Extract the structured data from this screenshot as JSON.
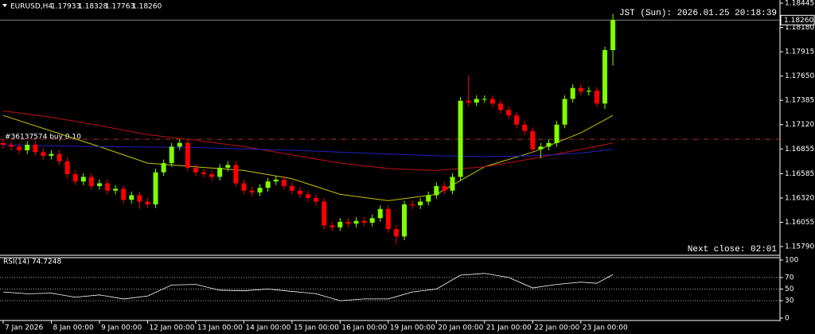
{
  "header": {
    "symbol": "EURUSD,H4",
    "ohlc_labels": [
      "1.17933",
      "1.18328",
      "1.17763",
      "1.18260"
    ],
    "clock": "JST (Sun): 2026.01.25 20:18:39",
    "next_close": "Next close: 02:01",
    "order_label": "#36137574 buy 0.10"
  },
  "chart_data": [
    {
      "type": "candlestick",
      "categories": [
        "7 Jan 2026",
        null,
        null,
        null,
        null,
        null,
        "8 Jan 00:00",
        null,
        null,
        null,
        null,
        null,
        "9 Jan 00:00",
        null,
        null,
        null,
        null,
        null,
        "12 Jan 00:00",
        null,
        null,
        null,
        null,
        null,
        "13 Jan 00:00",
        null,
        null,
        null,
        null,
        null,
        "14 Jan 00:00",
        null,
        null,
        null,
        null,
        null,
        "15 Jan 00:00",
        null,
        null,
        null,
        null,
        null,
        "16 Jan 00:00",
        null,
        null,
        null,
        null,
        null,
        "19 Jan 00:00",
        null,
        null,
        null,
        null,
        null,
        "20 Jan 00:00",
        null,
        null,
        null,
        null,
        null,
        "21 Jan 00:00",
        null,
        null,
        null,
        null,
        null,
        "22 Jan 00:00",
        null,
        null,
        null,
        null,
        null,
        "23 Jan 00:00",
        null,
        null,
        null,
        null
      ],
      "open": [
        1.1692,
        1.169,
        1.1688,
        1.1684,
        1.169,
        1.1682,
        1.1678,
        1.168,
        1.1672,
        1.1658,
        1.165,
        1.1655,
        1.1645,
        1.1648,
        1.164,
        1.1642,
        1.163,
        1.1635,
        1.1628,
        1.1625,
        1.166,
        1.167,
        1.1688,
        1.1692,
        1.1665,
        1.166,
        1.1658,
        1.1655,
        1.1665,
        1.1668,
        1.1648,
        1.164,
        1.1638,
        1.1643,
        1.165,
        1.1652,
        1.1645,
        1.164,
        1.1636,
        1.1632,
        1.1628,
        1.1602,
        1.16,
        1.1606,
        1.1604,
        1.1607,
        1.1605,
        1.161,
        1.162,
        1.1598,
        1.159,
        1.1625,
        1.1624,
        1.1628,
        1.1635,
        1.1645,
        1.164,
        1.1655,
        1.1738,
        1.1736,
        1.174,
        1.174,
        1.1735,
        1.1728,
        1.1722,
        1.1712,
        1.1705,
        1.1685,
        1.1688,
        1.1692,
        1.1712,
        1.174,
        1.1752,
        1.1748,
        1.1749,
        1.1735,
        1.17933
      ],
      "high": [
        1.1696,
        1.1694,
        1.1692,
        1.1694,
        1.1694,
        1.1686,
        1.1684,
        1.1684,
        1.1676,
        1.1662,
        1.1659,
        1.1659,
        1.1652,
        1.1652,
        1.1646,
        1.1646,
        1.1639,
        1.1639,
        1.1632,
        1.1664,
        1.1674,
        1.1692,
        1.1696,
        1.1696,
        1.1669,
        1.1664,
        1.1662,
        1.1669,
        1.1672,
        1.1672,
        1.1652,
        1.1644,
        1.1647,
        1.1654,
        1.1656,
        1.1656,
        1.1649,
        1.1644,
        1.164,
        1.1636,
        1.1632,
        1.1606,
        1.161,
        1.161,
        1.1611,
        1.1611,
        1.1614,
        1.1624,
        1.1624,
        1.1602,
        1.1629,
        1.1629,
        1.1632,
        1.1639,
        1.1649,
        1.1649,
        1.1659,
        1.1742,
        1.1766,
        1.1744,
        1.1744,
        1.1744,
        1.1739,
        1.1732,
        1.1726,
        1.1716,
        1.1709,
        1.1692,
        1.1696,
        1.1716,
        1.1744,
        1.1756,
        1.1756,
        1.1753,
        1.1753,
        1.1797,
        1.18328
      ],
      "low": [
        1.1686,
        1.1684,
        1.168,
        1.168,
        1.1678,
        1.1674,
        1.1674,
        1.1668,
        1.1654,
        1.1646,
        1.1646,
        1.1641,
        1.1641,
        1.1636,
        1.1636,
        1.1626,
        1.1626,
        1.162,
        1.1621,
        1.1621,
        1.1656,
        1.1666,
        1.1684,
        1.1661,
        1.1656,
        1.1654,
        1.1651,
        1.1651,
        1.1661,
        1.1644,
        1.1636,
        1.1634,
        1.1634,
        1.1639,
        1.1646,
        1.1641,
        1.1636,
        1.1632,
        1.1628,
        1.1624,
        1.1598,
        1.1596,
        1.1596,
        1.16,
        1.16,
        1.1601,
        1.1601,
        1.1606,
        1.1594,
        1.1582,
        1.1586,
        1.162,
        1.162,
        1.1624,
        1.1631,
        1.1636,
        1.1636,
        1.1651,
        1.1732,
        1.1732,
        1.1736,
        1.1731,
        1.1724,
        1.1718,
        1.1708,
        1.1701,
        1.1681,
        1.1675,
        1.1684,
        1.1688,
        1.1708,
        1.1736,
        1.1744,
        1.1744,
        1.1731,
        1.1729,
        1.17763
      ],
      "close": [
        1.169,
        1.1688,
        1.1684,
        1.169,
        1.1682,
        1.1678,
        1.168,
        1.1672,
        1.1658,
        1.165,
        1.1655,
        1.1645,
        1.1648,
        1.164,
        1.1642,
        1.163,
        1.1635,
        1.1628,
        1.1625,
        1.166,
        1.167,
        1.1688,
        1.1692,
        1.1665,
        1.166,
        1.1658,
        1.1655,
        1.1665,
        1.1668,
        1.1648,
        1.164,
        1.1638,
        1.1643,
        1.165,
        1.1652,
        1.1645,
        1.164,
        1.1636,
        1.1632,
        1.1628,
        1.1602,
        1.16,
        1.1606,
        1.1604,
        1.1607,
        1.1605,
        1.161,
        1.162,
        1.1598,
        1.159,
        1.1625,
        1.1624,
        1.1628,
        1.1635,
        1.1645,
        1.164,
        1.1655,
        1.1738,
        1.1736,
        1.174,
        1.174,
        1.1735,
        1.1728,
        1.1722,
        1.1712,
        1.1705,
        1.1685,
        1.1688,
        1.1692,
        1.1712,
        1.174,
        1.1752,
        1.1748,
        1.1749,
        1.1735,
        1.17933,
        1.1826
      ],
      "up_color": "#7fff00",
      "down_color": "#ff0000",
      "ylim": [
        1.15695,
        1.18462
      ],
      "yticks": [
        1.18445,
        {
          "value": 1.1818,
          "label": "1.18180"
        },
        1.17915,
        {
          "value": 1.1765,
          "label": "1.17650"
        },
        1.17385,
        {
          "value": 1.1712,
          "label": "1.17120"
        },
        1.16855,
        1.16585,
        {
          "value": 1.1632,
          "label": "1.16320"
        },
        1.16055,
        {
          "value": 1.1579,
          "label": "1.15790"
        }
      ],
      "last_price_label": "1.18260",
      "order_price": 1.1696,
      "order_color": "#b03030",
      "overlays": [
        {
          "color": "#c8c000",
          "x": [
            0,
            6,
            12,
            18,
            24,
            30,
            36,
            42,
            48,
            54,
            60,
            66,
            72,
            76
          ],
          "values": [
            1.1722,
            1.1705,
            1.1688,
            1.167,
            1.1666,
            1.1662,
            1.1653,
            1.1636,
            1.1629,
            1.1636,
            1.1666,
            1.1682,
            1.1703,
            1.1722
          ]
        },
        {
          "color": "#c01010",
          "x": [
            0,
            6,
            12,
            18,
            24,
            30,
            36,
            42,
            48,
            54,
            60,
            66,
            72,
            76
          ],
          "values": [
            1.1727,
            1.172,
            1.1711,
            1.1701,
            1.1695,
            1.1688,
            1.1679,
            1.167,
            1.1664,
            1.1662,
            1.1666,
            1.1675,
            1.1685,
            1.1692
          ]
        },
        {
          "color": "#2020c0",
          "x": [
            0,
            12,
            24,
            36,
            48,
            54,
            60,
            66,
            72,
            76
          ],
          "values": [
            1.169,
            1.1688,
            1.1687,
            1.1684,
            1.168,
            1.1678,
            1.1677,
            1.1678,
            1.1681,
            1.1685
          ]
        }
      ]
    },
    {
      "type": "line",
      "title": "RSI(14) 74.7248",
      "x": [
        0,
        3,
        6,
        9,
        12,
        15,
        18,
        21,
        24,
        27,
        30,
        33,
        36,
        39,
        42,
        45,
        48,
        51,
        54,
        57,
        60,
        63,
        66,
        69,
        72,
        74,
        76
      ],
      "values": [
        45,
        42,
        43,
        36,
        40,
        33,
        38,
        57,
        58,
        48,
        47,
        50,
        46,
        42,
        30,
        33,
        33,
        45,
        50,
        74,
        77,
        70,
        52,
        58,
        62,
        60,
        75
      ],
      "color": "#ffffff",
      "ylim": [
        0,
        100
      ],
      "yticks": [
        0,
        30,
        50,
        70,
        100
      ],
      "levels": [
        30,
        50,
        70
      ]
    }
  ]
}
